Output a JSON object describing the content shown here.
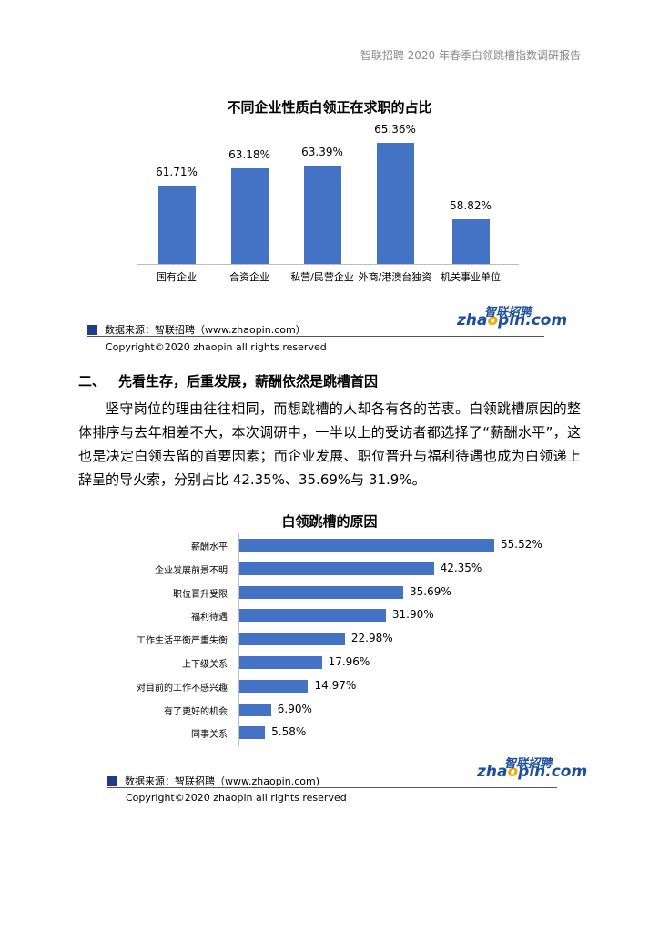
{
  "header": {
    "text": "智联招聘 2020 年春季白领跳槽指数调研报告"
  },
  "chart1": {
    "title": "不同企业性质白领正在求职的占比",
    "source": "数据来源：智联招聘（www.zhaopin.com）",
    "copyright": "Copyright©2020 zhaopin all rights reserved"
  },
  "chart2": {
    "title": "白领跳槽的原因",
    "source": "数据来源：智联招聘（www.zhaopin.com)",
    "copyright": "Copyright©2020 zhaopin all rights reserved"
  },
  "logo": {
    "cn": "智联招聘",
    "en_pre": "zha",
    "en_o": "o",
    "en_post": "pin.com"
  },
  "section": {
    "number": "二、",
    "title": "先看生存，后重发展，薪酬依然是跳槽首因",
    "paragraph": "坚守岗位的理由往往相同，而想跳槽的人却各有各的苦衷。白领跳槽原因的整体排序与去年相差不大，本次调研中，一半以上的受访者都选择了“薪酬水平”，这也是决定白领去留的首要因素；而企业发展、职位晋升与福利待遇也成为白领递上辞呈的导火索，分别占比 42.35%、35.69%与 31.9%。"
  },
  "chart_data": [
    {
      "type": "bar",
      "title": "不同企业性质白领正在求职的占比",
      "categories": [
        "国有企业",
        "合资企业",
        "私营/民营企业",
        "外商/港澳台独资",
        "机关事业单位"
      ],
      "values": [
        61.71,
        63.18,
        63.39,
        65.36,
        58.82
      ],
      "value_labels": [
        "61.71%",
        "63.18%",
        "63.39%",
        "65.36%",
        "58.82%"
      ],
      "color": "#4472c4",
      "grid": false
    },
    {
      "type": "bar",
      "orientation": "horizontal",
      "title": "白领跳槽的原因",
      "categories": [
        "薪酬水平",
        "企业发展前景不明",
        "职位晋升受限",
        "福利待遇",
        "工作生活平衡严重失衡",
        "上下级关系",
        "对目前的工作不感兴趣",
        "有了更好的机会",
        "同事关系"
      ],
      "values": [
        55.52,
        42.35,
        35.69,
        31.9,
        22.98,
        17.96,
        14.97,
        6.9,
        5.58
      ],
      "value_labels": [
        "55.52%",
        "42.35%",
        "35.69%",
        "31.90%",
        "22.98%",
        "17.96%",
        "14.97%",
        "6.90%",
        "5.58%"
      ],
      "color": "#4472c4",
      "grid": false
    }
  ]
}
